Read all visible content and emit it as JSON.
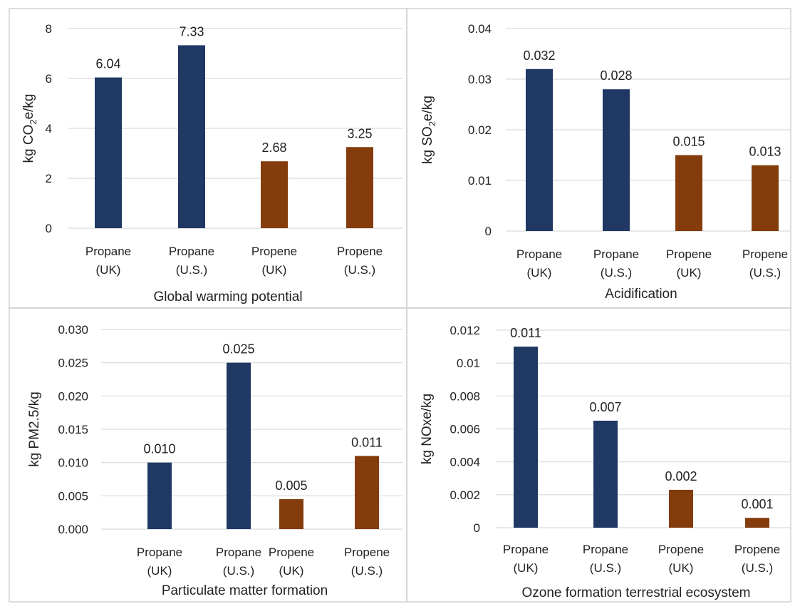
{
  "colors": {
    "propane": "#1f3864",
    "propene": "#843c0c",
    "grid": "#d9d9d9",
    "frame": "#d0d0d0",
    "text": "#222222"
  },
  "chart_data": [
    {
      "type": "bar",
      "categories": [
        [
          "Propane",
          "(UK)"
        ],
        [
          "Propane",
          "(U.S.)"
        ],
        [
          "Propene",
          "(UK)"
        ],
        [
          "Propene",
          "(U.S.)"
        ]
      ],
      "values": [
        6.04,
        7.33,
        2.68,
        3.25
      ],
      "data_labels": [
        "6.04",
        "7.33",
        "2.68",
        "3.25"
      ],
      "bar_colors": [
        "propane",
        "propane",
        "propene",
        "propene"
      ],
      "ylim": [
        0,
        8
      ],
      "yticks": [
        0,
        2,
        4,
        6,
        8
      ],
      "ytick_labels": [
        "0",
        "2",
        "4",
        "6",
        "8"
      ],
      "ylabel": {
        "pre": "kg CO",
        "sub": "2",
        "post": "e/kg"
      },
      "xlabel": "Global warming potential",
      "grid": true
    },
    {
      "type": "bar",
      "categories": [
        [
          "Propane",
          "(UK)"
        ],
        [
          "Propane",
          "(U.S.)"
        ],
        [
          "Propene",
          "(UK)"
        ],
        [
          "Propene",
          "(U.S.)"
        ]
      ],
      "values": [
        0.032,
        0.028,
        0.015,
        0.013
      ],
      "data_labels": [
        "0.032",
        "0.028",
        "0.015",
        "0.013"
      ],
      "bar_colors": [
        "propane",
        "propane",
        "propene",
        "propene"
      ],
      "ylim": [
        0,
        0.04
      ],
      "yticks": [
        0,
        0.01,
        0.02,
        0.03,
        0.04
      ],
      "ytick_labels": [
        "0",
        "0.01",
        "0.02",
        "0.03",
        "0.04"
      ],
      "ylabel": {
        "pre": "kg SO",
        "sub": "2",
        "post": "e/kg"
      },
      "xlabel": "Acidification",
      "grid": true
    },
    {
      "type": "bar",
      "categories": [
        [
          "Propane",
          "(UK)"
        ],
        [
          "Propane",
          "(U.S.)"
        ],
        [
          "Propene",
          "(UK)"
        ],
        [
          "Propene",
          "(U.S.)"
        ]
      ],
      "values": [
        0.01,
        0.025,
        0.0045,
        0.011
      ],
      "data_labels": [
        "0.010",
        "0.025",
        "0.005",
        "0.011"
      ],
      "bar_colors": [
        "propane",
        "propane",
        "propene",
        "propene"
      ],
      "ylim": [
        0,
        0.03
      ],
      "yticks": [
        0,
        0.005,
        0.01,
        0.015,
        0.02,
        0.025,
        0.03
      ],
      "ytick_labels": [
        "0.000",
        "0.005",
        "0.010",
        "0.015",
        "0.020",
        "0.025",
        "0.030"
      ],
      "ylabel": {
        "pre": "kg PM2.5/kg",
        "sub": "",
        "post": ""
      },
      "xlabel": "Particulate matter formation",
      "grid": true
    },
    {
      "type": "bar",
      "categories": [
        [
          "Propane",
          "(UK)"
        ],
        [
          "Propane",
          "(U.S.)"
        ],
        [
          "Propene",
          "(UK)"
        ],
        [
          "Propene",
          "(U.S.)"
        ]
      ],
      "values": [
        0.011,
        0.0065,
        0.0023,
        0.0006
      ],
      "data_labels": [
        "0.011",
        "0.007",
        "0.002",
        "0.001"
      ],
      "bar_colors": [
        "propane",
        "propane",
        "propene",
        "propene"
      ],
      "ylim": [
        0,
        0.012
      ],
      "yticks": [
        0,
        0.002,
        0.004,
        0.006,
        0.008,
        0.01,
        0.012
      ],
      "ytick_labels": [
        "0",
        "0.002",
        "0.004",
        "0.006",
        "0.008",
        "0.01",
        "0.012"
      ],
      "ylabel": {
        "pre": "kg NOxe/kg",
        "sub": "",
        "post": ""
      },
      "xlabel": "Ozone formation terrestrial ecosystem",
      "grid": true
    }
  ]
}
